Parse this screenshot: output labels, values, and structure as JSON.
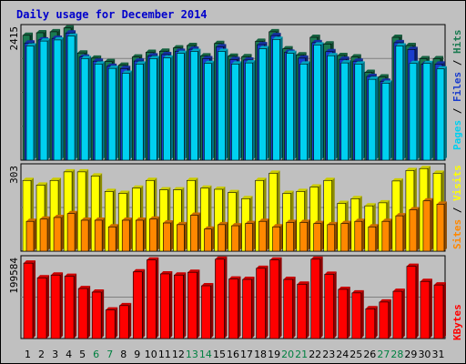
{
  "title": "Daily usage for December 2014",
  "colors": {
    "pages": "#00d0f0",
    "files": "#1a3ccc",
    "hits": "#1a7a50",
    "visits": "#ffff00",
    "sites": "#ff8800",
    "kbytes": "#ff0000",
    "weekday_tick": "#000000",
    "weekend_tick": "#008040",
    "title": "#0000cc"
  },
  "chart_data": [
    {
      "type": "bar",
      "name_labels": [
        "Pages",
        "Files",
        "Hits"
      ],
      "ymax_label": "2415",
      "ymax": 2415,
      "categories": [
        "1",
        "2",
        "3",
        "4",
        "5",
        "6",
        "7",
        "8",
        "9",
        "10",
        "11",
        "12",
        "13",
        "14",
        "15",
        "16",
        "17",
        "18",
        "19",
        "20",
        "21",
        "22",
        "23",
        "24",
        "25",
        "26",
        "27",
        "28",
        "29",
        "30",
        "31"
      ],
      "series": [
        {
          "name": "Hits",
          "values": [
            2285,
            2332,
            2350,
            2419,
            1962,
            1867,
            1806,
            1738,
            1888,
            1973,
            1994,
            2054,
            2098,
            1910,
            2136,
            1903,
            1894,
            2175,
            2350,
            2038,
            1927,
            2248,
            2127,
            1916,
            1891,
            1608,
            1523,
            2248,
            2098,
            1857,
            1857
          ]
        },
        {
          "name": "Files",
          "values": [
            2144,
            2200,
            2229,
            2328,
            1887,
            1812,
            1718,
            1677,
            1814,
            1910,
            1933,
            1993,
            2030,
            1858,
            2075,
            1842,
            1833,
            2114,
            2280,
            1976,
            1867,
            2150,
            1986,
            1846,
            1812,
            1533,
            1445,
            2150,
            2026,
            1760,
            1760
          ]
        },
        {
          "name": "Pages",
          "values": [
            2090,
            2180,
            2200,
            2270,
            1860,
            1760,
            1680,
            1590,
            1760,
            1860,
            1870,
            1955,
            1990,
            1770,
            1990,
            1760,
            1780,
            2040,
            2210,
            1955,
            1760,
            2110,
            1912,
            1780,
            1760,
            1480,
            1410,
            2090,
            1770,
            1770,
            1670
          ]
        }
      ],
      "weekend_days": [
        6,
        7,
        13,
        14,
        20,
        21,
        27,
        28
      ]
    },
    {
      "type": "bar",
      "name_labels": [
        "Sites",
        "Visits"
      ],
      "ymax_label": "303",
      "ymax": 303,
      "categories": [
        "1",
        "2",
        "3",
        "4",
        "5",
        "6",
        "7",
        "8",
        "9",
        "10",
        "11",
        "12",
        "13",
        "14",
        "15",
        "16",
        "17",
        "18",
        "19",
        "20",
        "21",
        "22",
        "23",
        "24",
        "25",
        "26",
        "27",
        "28",
        "29",
        "30",
        "31"
      ],
      "series": [
        {
          "name": "Visits",
          "values": [
            256,
            239,
            256,
            287,
            287,
            272,
            216,
            209,
            228,
            256,
            222,
            222,
            256,
            228,
            224,
            212,
            190,
            256,
            282,
            209,
            216,
            232,
            256,
            173,
            190,
            164,
            175,
            254,
            292,
            299,
            282
          ]
        },
        {
          "name": "Sites",
          "values": [
            108,
            116,
            122,
            136,
            112,
            112,
            88,
            112,
            112,
            116,
            102,
            96,
            130,
            80,
            96,
            92,
            100,
            108,
            88,
            104,
            104,
            100,
            96,
            100,
            108,
            88,
            108,
            128,
            150,
            182,
            170
          ]
        }
      ]
    },
    {
      "type": "bar",
      "name_labels": [
        "KBytes"
      ],
      "ymax_label": "199584",
      "ymax": 199584,
      "categories": [
        "1",
        "2",
        "3",
        "4",
        "5",
        "6",
        "7",
        "8",
        "9",
        "10",
        "11",
        "12",
        "13",
        "14",
        "15",
        "16",
        "17",
        "18",
        "19",
        "20",
        "21",
        "22",
        "23",
        "24",
        "25",
        "26",
        "27",
        "28",
        "29",
        "30",
        "31"
      ],
      "series": [
        {
          "name": "KBytes",
          "values": [
            190000,
            153000,
            160000,
            157000,
            126000,
            117000,
            72000,
            83000,
            168000,
            198000,
            163000,
            160000,
            167000,
            133000,
            200000,
            150000,
            149000,
            177000,
            198000,
            149000,
            137000,
            200000,
            162000,
            124000,
            115000,
            75000,
            92000,
            119000,
            182000,
            144000,
            135000
          ]
        }
      ]
    }
  ]
}
